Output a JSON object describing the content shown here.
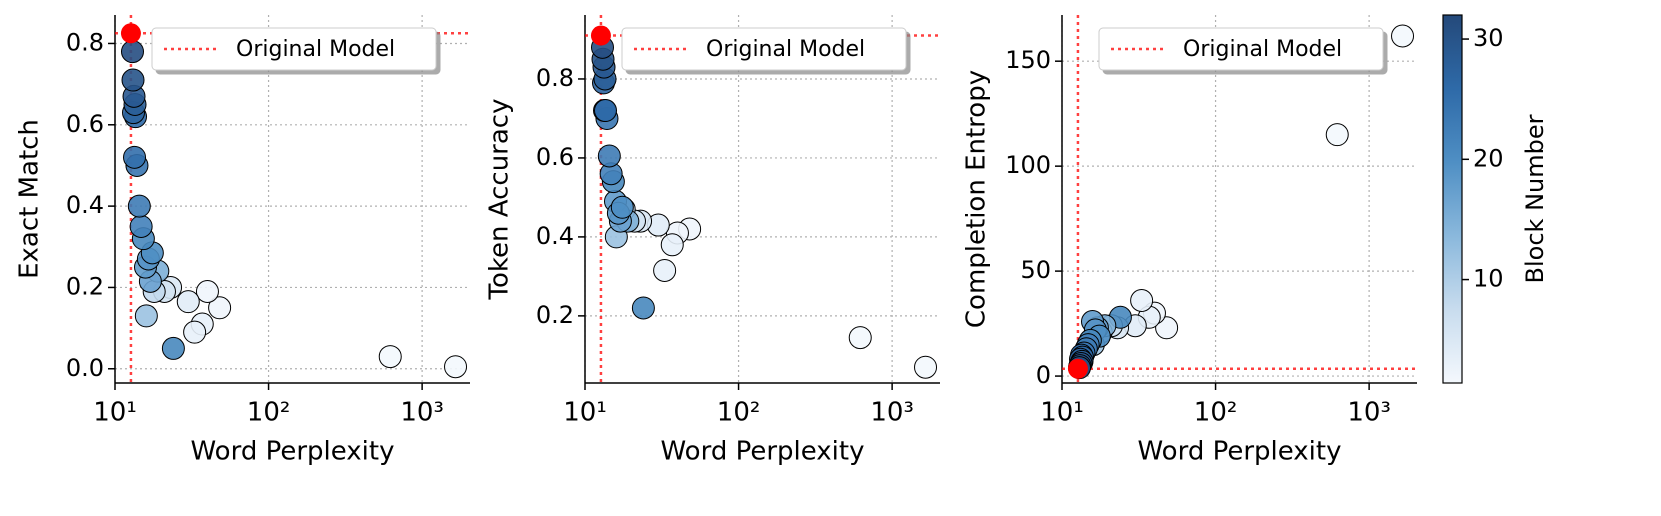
{
  "chart_data": [
    {
      "type": "scatter",
      "xlabel": "Word Perplexity",
      "ylabel": "Exact Match",
      "xlog": true,
      "grid": true,
      "legend": "upper right",
      "xlim": [
        10,
        2050
      ],
      "xticks": [
        {
          "value": 10,
          "label": "10¹"
        },
        {
          "value": 100,
          "label": "10²"
        },
        {
          "value": 1000,
          "label": "10³"
        }
      ],
      "ylim": [
        -0.035,
        0.87
      ],
      "yticks": [
        {
          "value": 0,
          "label": "0.0"
        },
        0.2,
        0.4,
        0.6,
        0.8
      ],
      "x": [
        13.0,
        13.1,
        13.3,
        13.5,
        13.2,
        13.6,
        13.4,
        13.9,
        14.4,
        14.8,
        15.3,
        17.5,
        16.5,
        15.8,
        17.0,
        19.0,
        24,
        16,
        18,
        21,
        23,
        30,
        33,
        37,
        40,
        48,
        620,
        1650
      ],
      "values": [
        0.78,
        0.71,
        0.67,
        0.65,
        0.63,
        0.62,
        0.52,
        0.5,
        0.4,
        0.35,
        0.32,
        0.285,
        0.27,
        0.25,
        0.215,
        0.24,
        0.05,
        0.13,
        0.19,
        0.19,
        0.2,
        0.165,
        0.09,
        0.11,
        0.19,
        0.15,
        0.03,
        0.005
      ],
      "block": [
        31,
        30,
        29,
        28,
        27,
        26,
        25,
        24,
        23,
        22,
        21,
        20,
        19,
        18,
        17,
        15,
        21,
        12,
        8,
        6,
        5,
        4,
        3,
        3,
        2,
        2,
        1.5,
        1.5
      ],
      "reference": {
        "name": "Original Model",
        "x": 12.7,
        "y": 0.825,
        "color": "#ff0000"
      }
    },
    {
      "type": "scatter",
      "xlabel": "Word Perplexity",
      "ylabel": "Token Accuracy",
      "xlog": true,
      "grid": true,
      "legend": "upper right",
      "xlim": [
        10,
        2050
      ],
      "xticks": [
        {
          "value": 10,
          "label": "10¹"
        },
        {
          "value": 100,
          "label": "10²"
        },
        {
          "value": 1000,
          "label": "10³"
        }
      ],
      "ylim": [
        0.03,
        0.962
      ],
      "yticks": [
        0.2,
        0.4,
        0.6,
        0.8
      ],
      "x": [
        13.0,
        13.1,
        13.3,
        13.5,
        13.2,
        13.6,
        13.4,
        13.9,
        14.4,
        14.8,
        15.3,
        17.5,
        16.5,
        15.8,
        17.0,
        19.0,
        24,
        16,
        18,
        21,
        23,
        30,
        33,
        37,
        40,
        48,
        620,
        1650
      ],
      "values": [
        0.88,
        0.85,
        0.83,
        0.8,
        0.79,
        0.72,
        0.72,
        0.7,
        0.605,
        0.56,
        0.54,
        0.475,
        0.46,
        0.49,
        0.44,
        0.44,
        0.22,
        0.4,
        0.47,
        0.44,
        0.44,
        0.43,
        0.315,
        0.38,
        0.41,
        0.42,
        0.145,
        0.07
      ],
      "block": [
        31,
        30,
        29,
        28,
        27,
        26,
        25,
        24,
        23,
        22,
        21,
        20,
        19,
        18,
        17,
        15,
        21,
        12,
        8,
        6,
        5,
        4,
        3,
        3,
        2,
        2,
        1.5,
        1.5
      ],
      "reference": {
        "name": "Original Model",
        "x": 12.7,
        "y": 0.91,
        "color": "#ff0000"
      }
    },
    {
      "type": "scatter",
      "xlabel": "Word Perplexity",
      "ylabel": "Completion Entropy",
      "xlog": true,
      "grid": true,
      "legend": "upper right",
      "xlim": [
        10,
        2050
      ],
      "xticks": [
        {
          "value": 10,
          "label": "10¹"
        },
        {
          "value": 100,
          "label": "10²"
        },
        {
          "value": 1000,
          "label": "10³"
        }
      ],
      "ylim": [
        -3.3,
        172
      ],
      "yticks": [
        0,
        50,
        100,
        150
      ],
      "x": [
        13.0,
        13.1,
        13.3,
        13.5,
        13.2,
        13.6,
        13.4,
        13.9,
        14.4,
        14.8,
        15.3,
        17.5,
        16.5,
        15.8,
        17.0,
        19.0,
        24,
        16,
        18,
        21,
        23,
        30,
        33,
        37,
        40,
        48,
        620,
        1650
      ],
      "values": [
        4,
        5,
        6,
        7,
        8,
        9,
        10,
        11,
        13,
        15,
        17,
        19,
        22,
        26,
        23,
        24,
        28,
        15,
        21,
        24,
        23,
        24,
        36,
        28,
        30,
        23,
        115,
        162
      ],
      "block": [
        31,
        30,
        29,
        28,
        27,
        26,
        25,
        24,
        23,
        22,
        21,
        20,
        19,
        18,
        17,
        15,
        21,
        12,
        8,
        6,
        5,
        4,
        3,
        3,
        2,
        2,
        1.5,
        1.5
      ],
      "reference": {
        "name": "Original Model",
        "x": 12.7,
        "y": 3.5,
        "color": "#ff0000"
      }
    }
  ],
  "colorbar": {
    "label": "Block Number",
    "lim": [
      1.4,
      32
    ],
    "ticks": [
      10,
      20,
      30
    ],
    "colors": [
      "#f4f8fd",
      "#c8dcee",
      "#8ab8dc",
      "#4f8fc4",
      "#2e6aa8",
      "#24497a"
    ]
  }
}
